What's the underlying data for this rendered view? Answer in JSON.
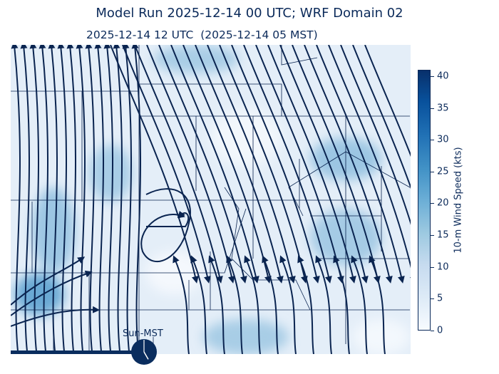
{
  "title": "Model Run 2025-12-14 00 UTC; WRF Domain 02",
  "subtitle": "2025-12-14 12 UTC  (2025-12-14 05 MST)",
  "colorbar": {
    "label": "10-m Wind Speed (kts)",
    "ticks": [
      "0",
      "5",
      "10",
      "15",
      "20",
      "25",
      "30",
      "35",
      "40"
    ],
    "min": 0,
    "max": 41,
    "colormap": "Blues"
  },
  "clock": {
    "label": "Sun-MST",
    "hour": 5,
    "minute": 0
  },
  "colors": {
    "text": "#0b2a5a",
    "streamline": "#0a2450",
    "accent": "#08306b"
  },
  "map": {
    "field": "10-m wind speed with streamlines",
    "progress_bar_fraction": 0.33
  }
}
